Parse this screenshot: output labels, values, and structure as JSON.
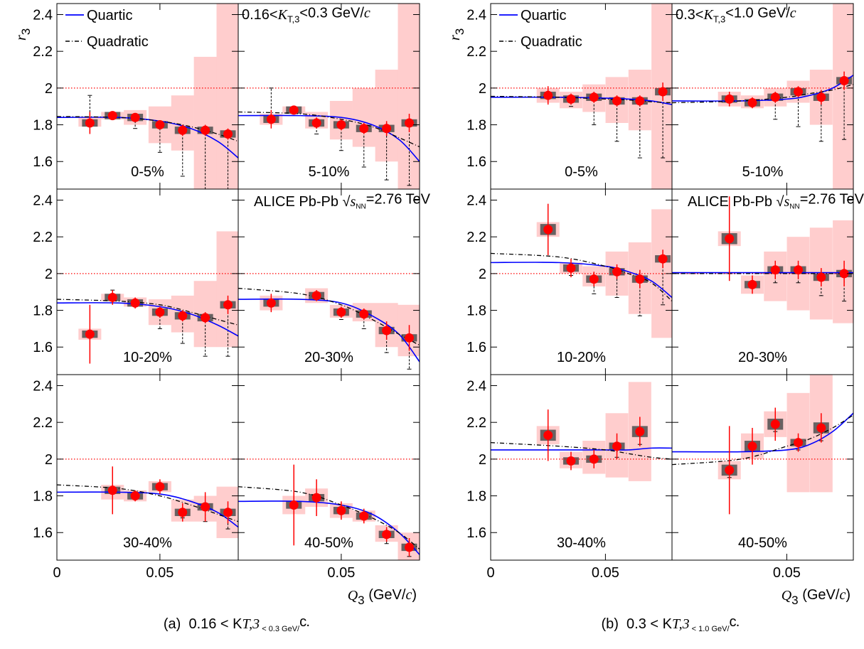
{
  "chart_data": [
    {
      "type": "scatter",
      "caption": [
        "(a)  0.16 < ",
        "K",
        "T,3",
        " < 0.3 GeV/",
        "c",
        "."
      ],
      "x_label": [
        "Q",
        "3",
        " (GeV/",
        "c",
        ")"
      ],
      "y_label": [
        "r",
        "3"
      ],
      "xlim": [
        0,
        0.088
      ],
      "ylim": [
        1.45,
        2.46
      ],
      "xticks": [
        0,
        0.05
      ],
      "yticks": [
        1.6,
        1.8,
        2,
        2.2,
        2.4
      ],
      "reference": 2,
      "series": [
        {
          "name": "Quartic",
          "color": "#0000ff"
        },
        {
          "name": "Quadratic",
          "color": "#000000"
        }
      ],
      "x": [
        0.016,
        0.027,
        0.038,
        0.05,
        0.061,
        0.072,
        0.083
      ],
      "curve_x": [
        0,
        0.03,
        0.05,
        0.065,
        0.078,
        0.088
      ],
      "panels": [
        {
          "label": "0-5%",
          "values": [
            1.81,
            1.85,
            1.84,
            1.8,
            1.77,
            1.77,
            1.75
          ],
          "stat": [
            0.06,
            0.02,
            0.02,
            0.02,
            0.03,
            0.03,
            0.03
          ],
          "sys": [
            0.02,
            0.02,
            0.02,
            0.02,
            0.02,
            0.02,
            0.02
          ],
          "band_lo": [
            1.79,
            1.83,
            1.8,
            1.7,
            1.66,
            1.45,
            1.45
          ],
          "band_hi": [
            1.84,
            1.87,
            1.88,
            1.9,
            1.96,
            2.17,
            2.46
          ],
          "dashed": [
            1.96,
            1.84,
            1.78,
            1.65,
            1.52,
            1.45,
            1.45
          ],
          "curves": [
            [
              1.84,
              1.84,
              1.82,
              1.78,
              1.71,
              1.62
            ],
            [
              1.845,
              1.84,
              1.82,
              1.79,
              1.75,
              1.71
            ]
          ]
        },
        {
          "label": "5-10%",
          "note": [
            "0.16<",
            "K",
            "T,3",
            "<0.3 GeV/",
            "c"
          ],
          "values": [
            1.83,
            1.88,
            1.81,
            1.8,
            1.78,
            1.78,
            1.81
          ],
          "stat": [
            0.05,
            0.02,
            0.03,
            0.03,
            0.03,
            0.04,
            0.05
          ],
          "sys": [
            0.02,
            0.02,
            0.02,
            0.02,
            0.02,
            0.02,
            0.02
          ],
          "band_lo": [
            1.8,
            1.86,
            1.78,
            1.72,
            1.68,
            1.6,
            1.45
          ],
          "band_hi": [
            1.86,
            1.9,
            1.87,
            1.93,
            2.0,
            2.1,
            2.46
          ],
          "dashed": [
            2.0,
            1.86,
            1.75,
            1.66,
            1.57,
            1.5,
            1.47
          ],
          "curves": [
            [
              1.85,
              1.85,
              1.84,
              1.8,
              1.72,
              1.6
            ],
            [
              1.87,
              1.86,
              1.83,
              1.79,
              1.73,
              1.68
            ]
          ]
        },
        {
          "label": "10-20%",
          "values": [
            1.67,
            1.87,
            1.84,
            1.79,
            1.77,
            1.76,
            1.83
          ],
          "stat": [
            0.16,
            0.04,
            0.03,
            0.03,
            0.03,
            0.03,
            0.05
          ],
          "sys": [
            0.02,
            0.02,
            0.02,
            0.02,
            0.02,
            0.02,
            0.02
          ],
          "band_lo": [
            1.64,
            1.85,
            1.82,
            1.72,
            1.68,
            1.6,
            1.6
          ],
          "band_hi": [
            1.7,
            1.89,
            1.87,
            1.86,
            1.88,
            1.96,
            2.23
          ],
          "dashed": [
            null,
            1.91,
            1.82,
            1.7,
            1.62,
            1.55,
            1.55
          ],
          "curves": [
            [
              1.84,
              1.84,
              1.82,
              1.78,
              1.72,
              1.66
            ],
            [
              1.86,
              1.85,
              1.83,
              1.79,
              1.75,
              1.72
            ]
          ]
        },
        {
          "label": "20-30%",
          "note": [
            "ALICE Pb-Pb ",
            "√",
            "s",
            "NN",
            "=2.76 TeV"
          ],
          "values": [
            1.84,
            null,
            1.88,
            1.79,
            1.78,
            1.69,
            1.65
          ],
          "stat": [
            0.05,
            null,
            0.03,
            0.03,
            0.03,
            0.05,
            0.07
          ],
          "sys": [
            0.02,
            null,
            0.02,
            0.02,
            0.02,
            0.02,
            0.02
          ],
          "band_lo": [
            1.8,
            null,
            1.84,
            1.76,
            1.74,
            1.6,
            1.55
          ],
          "band_hi": [
            1.88,
            null,
            1.92,
            1.83,
            1.84,
            1.84,
            1.83
          ],
          "dashed": [
            null,
            null,
            1.86,
            1.75,
            1.7,
            1.57,
            1.48
          ],
          "curves": [
            [
              1.86,
              1.86,
              1.84,
              1.77,
              1.67,
              1.52
            ],
            [
              1.92,
              1.89,
              1.83,
              1.75,
              1.67,
              1.61
            ]
          ]
        },
        {
          "label": "30-40%",
          "values": [
            null,
            1.83,
            1.8,
            1.85,
            1.71,
            1.74,
            1.71
          ],
          "stat": [
            null,
            0.13,
            0.03,
            0.04,
            0.05,
            0.08,
            0.06
          ],
          "sys": [
            null,
            0.02,
            0.02,
            0.02,
            0.02,
            0.02,
            0.02
          ],
          "band_lo": [
            null,
            1.78,
            1.77,
            1.82,
            1.66,
            1.66,
            1.57
          ],
          "band_hi": [
            null,
            1.86,
            1.83,
            1.88,
            1.78,
            1.8,
            1.85
          ],
          "dashed": [
            null,
            null,
            1.79,
            1.84,
            1.68,
            1.66,
            1.62
          ],
          "curves": [
            [
              1.82,
              1.82,
              1.81,
              1.77,
              1.71,
              1.63
            ],
            [
              1.86,
              1.84,
              1.8,
              1.75,
              1.7,
              1.66
            ]
          ]
        },
        {
          "label": "40-50%",
          "values": [
            null,
            1.75,
            1.79,
            1.72,
            1.69,
            1.59,
            1.52
          ],
          "stat": [
            null,
            0.22,
            0.1,
            0.05,
            0.04,
            0.04,
            0.05
          ],
          "sys": [
            null,
            0.02,
            0.02,
            0.02,
            0.02,
            0.02,
            0.02
          ],
          "band_lo": [
            null,
            1.7,
            1.74,
            1.68,
            1.66,
            1.55,
            1.45
          ],
          "band_hi": [
            null,
            1.8,
            1.84,
            1.76,
            1.72,
            1.64,
            1.6
          ],
          "dashed": [
            null,
            null,
            1.77,
            1.71,
            1.67,
            1.54,
            1.47
          ],
          "curves": [
            [
              1.77,
              1.77,
              1.75,
              1.7,
              1.6,
              1.48
            ],
            [
              1.85,
              1.82,
              1.75,
              1.68,
              1.6,
              1.51
            ]
          ]
        }
      ]
    },
    {
      "type": "scatter",
      "caption": [
        "(b)  0.3 < ",
        "K",
        "T,3",
        " < 1.0 GeV/",
        "c",
        "."
      ],
      "x_label": [
        "Q",
        "3",
        " (GeV/",
        "c",
        ")"
      ],
      "y_label": [
        "r",
        "3"
      ],
      "xlim": [
        0,
        0.079
      ],
      "ylim": [
        1.45,
        2.46
      ],
      "xticks": [
        0,
        0.05
      ],
      "yticks": [
        1.6,
        1.8,
        2,
        2.2,
        2.4
      ],
      "reference": 2,
      "series": [
        {
          "name": "Quartic",
          "color": "#0000ff"
        },
        {
          "name": "Quadratic",
          "color": "#000000"
        }
      ],
      "x": [
        0.025,
        0.035,
        0.045,
        0.055,
        0.065,
        0.075
      ],
      "curve_x": [
        0,
        0.03,
        0.05,
        0.06,
        0.07,
        0.079
      ],
      "panels": [
        {
          "label": "0-5%",
          "values": [
            1.96,
            1.94,
            1.95,
            1.93,
            1.93,
            1.98
          ],
          "stat": [
            0.05,
            0.03,
            0.03,
            0.03,
            0.03,
            0.05
          ],
          "sys": [
            0.02,
            0.02,
            0.02,
            0.02,
            0.02,
            0.02
          ],
          "band_lo": [
            1.92,
            1.89,
            1.87,
            1.81,
            1.77,
            1.45
          ],
          "band_hi": [
            2.0,
            1.98,
            2.02,
            2.06,
            2.1,
            2.46
          ],
          "dashed": [
            null,
            1.9,
            1.8,
            1.71,
            1.62,
            1.62
          ],
          "curves": [
            [
              1.95,
              1.95,
              1.945,
              1.94,
              1.93,
              1.91
            ],
            [
              1.955,
              1.95,
              1.94,
              1.935,
              1.925,
              1.92
            ]
          ]
        },
        {
          "label": "5-10%",
          "note": [
            "0.3<",
            "K",
            "T,3",
            "<1.0 GeV/",
            "c"
          ],
          "values": [
            1.94,
            1.92,
            1.95,
            1.98,
            1.95,
            2.04
          ],
          "stat": [
            0.04,
            0.03,
            0.03,
            0.03,
            0.04,
            0.05
          ],
          "sys": [
            0.02,
            0.02,
            0.02,
            0.02,
            0.02,
            0.02
          ],
          "band_lo": [
            1.9,
            1.89,
            1.9,
            1.92,
            1.8,
            1.45
          ],
          "band_hi": [
            1.98,
            1.96,
            2.0,
            2.04,
            2.1,
            2.46
          ],
          "dashed": [
            null,
            null,
            1.83,
            1.79,
            1.71,
            1.72
          ],
          "curves": [
            [
              1.93,
              1.93,
              1.94,
              1.96,
              2.0,
              2.07
            ],
            [
              1.92,
              1.93,
              1.95,
              1.97,
              1.99,
              2.02
            ]
          ]
        },
        {
          "label": "10-20%",
          "values": [
            2.24,
            2.03,
            1.97,
            2.01,
            1.97,
            2.08
          ],
          "stat": [
            0.14,
            0.05,
            0.04,
            0.04,
            0.05,
            0.05
          ],
          "sys": [
            0.03,
            0.02,
            0.02,
            0.02,
            0.02,
            0.02
          ],
          "band_lo": [
            2.2,
            2.0,
            1.93,
            1.88,
            1.78,
            1.65
          ],
          "band_hi": [
            2.28,
            2.06,
            2.04,
            2.12,
            2.17,
            2.35
          ],
          "dashed": [
            null,
            1.99,
            1.89,
            1.87,
            1.77,
            1.83
          ],
          "curves": [
            [
              2.06,
              2.06,
              2.04,
              2.01,
              1.96,
              1.87
            ],
            [
              2.11,
              2.09,
              2.04,
              2.0,
              1.95,
              1.85
            ]
          ]
        },
        {
          "label": "20-30%",
          "note": [
            "ALICE Pb-Pb ",
            "√",
            "s",
            "NN",
            "=2.76 TeV"
          ],
          "values": [
            2.19,
            1.94,
            2.02,
            2.02,
            1.98,
            2.0
          ],
          "stat": [
            0.23,
            0.05,
            0.05,
            0.05,
            0.05,
            0.07
          ],
          "sys": [
            0.03,
            0.02,
            0.02,
            0.02,
            0.02,
            0.02
          ],
          "band_lo": [
            2.15,
            1.89,
            1.85,
            1.8,
            1.75,
            1.73
          ],
          "band_hi": [
            2.23,
            1.99,
            2.12,
            2.2,
            2.25,
            2.29
          ],
          "dashed": [
            null,
            null,
            1.95,
            1.95,
            1.88,
            1.85
          ],
          "curves": [
            [
              2.005,
              2.005,
              2.005,
              2.005,
              2.005,
              2.005
            ],
            [
              2.0,
              2.0,
              2.0,
              2.0,
              2.0,
              2.0
            ]
          ]
        },
        {
          "label": "30-40%",
          "values": [
            2.13,
            1.99,
            2.0,
            2.07,
            2.15,
            null
          ],
          "stat": [
            0.14,
            0.05,
            0.05,
            0.07,
            0.08,
            null
          ],
          "sys": [
            0.03,
            0.02,
            0.02,
            0.02,
            0.03,
            null
          ],
          "band_lo": [
            2.08,
            1.95,
            1.92,
            1.9,
            1.88,
            null
          ],
          "band_hi": [
            2.18,
            2.04,
            2.1,
            2.25,
            2.42,
            null
          ],
          "dashed": [
            null,
            1.97,
            1.98,
            2.01,
            2.08,
            null
          ],
          "curves": [
            [
              2.05,
              2.05,
              2.05,
              2.05,
              2.06,
              2.06
            ],
            [
              2.09,
              2.07,
              2.05,
              2.03,
              2.01,
              2.0
            ]
          ]
        },
        {
          "label": "40-50%",
          "values": [
            1.94,
            2.07,
            2.19,
            2.09,
            2.17,
            null
          ],
          "stat": [
            0.24,
            0.1,
            0.09,
            0.05,
            0.08,
            null
          ],
          "sys": [
            0.03,
            0.03,
            0.03,
            0.02,
            0.03,
            null
          ],
          "band_lo": [
            1.89,
            2.0,
            2.12,
            1.82,
            1.82,
            null
          ],
          "band_hi": [
            1.99,
            2.14,
            2.26,
            2.36,
            2.46,
            null
          ],
          "dashed": [
            1.9,
            2.05,
            2.15,
            2.05,
            2.1,
            null
          ],
          "curves": [
            [
              2.04,
              2.04,
              2.05,
              2.08,
              2.15,
              2.25
            ],
            [
              1.97,
              2.0,
              2.07,
              2.11,
              2.17,
              2.24
            ]
          ]
        }
      ]
    }
  ]
}
